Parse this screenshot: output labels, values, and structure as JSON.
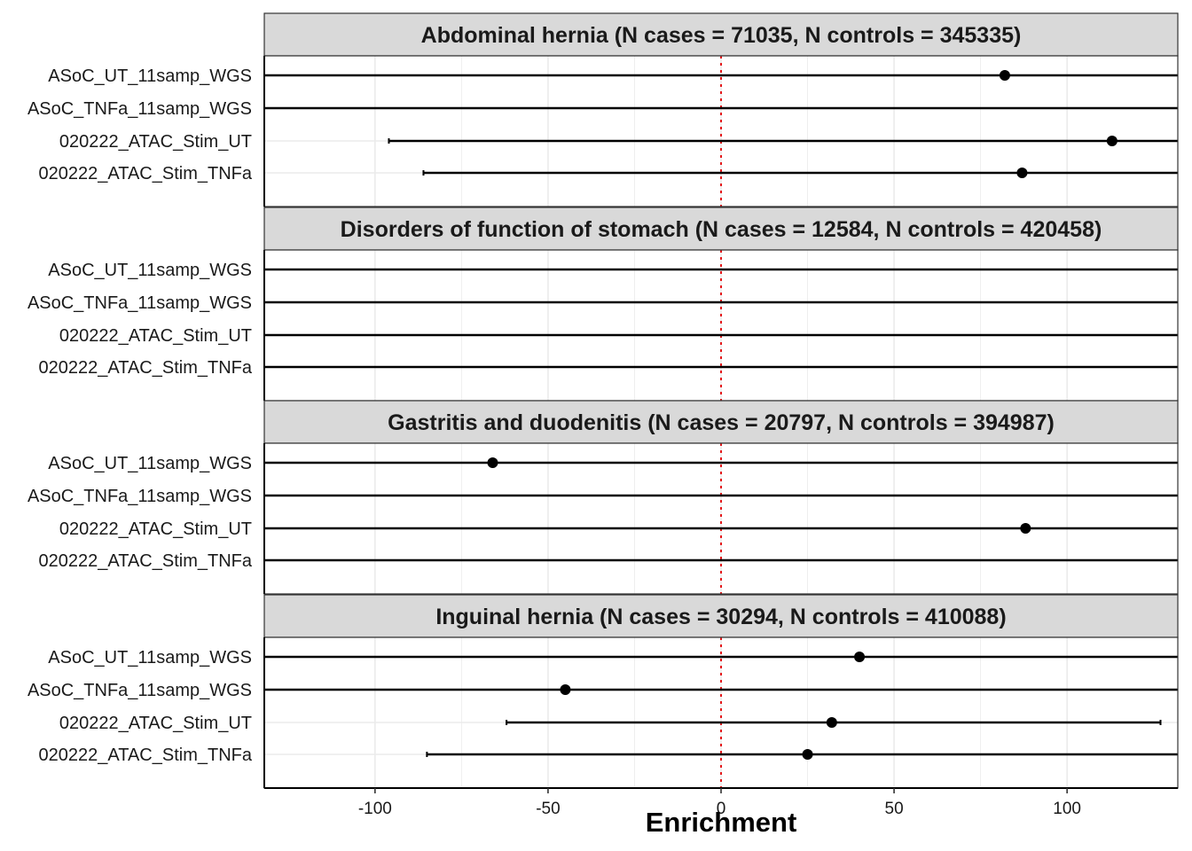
{
  "chart_data": {
    "type": "scatter",
    "xlabel": "Enrichment",
    "xlim": [
      -132,
      132
    ],
    "x_ticks": [
      -100,
      -50,
      0,
      50,
      100
    ],
    "x_tick_labels": [
      "-100",
      "-50",
      "0",
      "50",
      "100"
    ],
    "reference_line": {
      "x": 0,
      "style": "dotted",
      "color": "#e41a1c"
    },
    "grid": true,
    "categories": [
      "ASoC_UT_11samp_WGS",
      "ASoC_TNFa_11samp_WGS",
      "020222_ATAC_Stim_UT",
      "020222_ATAC_Stim_TNFa"
    ],
    "panels": [
      {
        "title": "Abdominal hernia (N cases = 71035, N controls = 345335)",
        "rows": [
          {
            "label": "ASoC_UT_11samp_WGS",
            "estimate": 82,
            "lower": -200,
            "upper": 200
          },
          {
            "label": "ASoC_TNFa_11samp_WGS",
            "estimate": null,
            "lower": -200,
            "upper": 200
          },
          {
            "label": "020222_ATAC_Stim_UT",
            "estimate": 113,
            "lower": -96,
            "upper": 200
          },
          {
            "label": "020222_ATAC_Stim_TNFa",
            "estimate": 87,
            "lower": -86,
            "upper": 200
          }
        ]
      },
      {
        "title": "Disorders of function of stomach (N cases = 12584, N controls = 420458)",
        "rows": [
          {
            "label": "ASoC_UT_11samp_WGS",
            "estimate": null,
            "lower": -200,
            "upper": 200
          },
          {
            "label": "ASoC_TNFa_11samp_WGS",
            "estimate": null,
            "lower": -200,
            "upper": 200
          },
          {
            "label": "020222_ATAC_Stim_UT",
            "estimate": null,
            "lower": -200,
            "upper": 200
          },
          {
            "label": "020222_ATAC_Stim_TNFa",
            "estimate": null,
            "lower": -200,
            "upper": 200
          }
        ]
      },
      {
        "title": "Gastritis and duodenitis (N cases = 20797, N controls = 394987)",
        "rows": [
          {
            "label": "ASoC_UT_11samp_WGS",
            "estimate": -66,
            "lower": -200,
            "upper": 200
          },
          {
            "label": "ASoC_TNFa_11samp_WGS",
            "estimate": null,
            "lower": -200,
            "upper": 200
          },
          {
            "label": "020222_ATAC_Stim_UT",
            "estimate": 88,
            "lower": -200,
            "upper": 200
          },
          {
            "label": "020222_ATAC_Stim_TNFa",
            "estimate": null,
            "lower": -200,
            "upper": 200
          }
        ]
      },
      {
        "title": "Inguinal hernia (N cases = 30294, N controls = 410088)",
        "rows": [
          {
            "label": "ASoC_UT_11samp_WGS",
            "estimate": 40,
            "lower": -200,
            "upper": 200
          },
          {
            "label": "ASoC_TNFa_11samp_WGS",
            "estimate": -45,
            "lower": -200,
            "upper": 200
          },
          {
            "label": "020222_ATAC_Stim_UT",
            "estimate": 32,
            "lower": -62,
            "upper": 127
          },
          {
            "label": "020222_ATAC_Stim_TNFa",
            "estimate": 25,
            "lower": -85,
            "upper": 200
          }
        ]
      }
    ],
    "colors": {
      "strip_fill": "#d9d9d9",
      "strip_border": "#333333",
      "grid": "#ebebeb",
      "point": "#000000",
      "reference_line": "#e41a1c"
    }
  }
}
